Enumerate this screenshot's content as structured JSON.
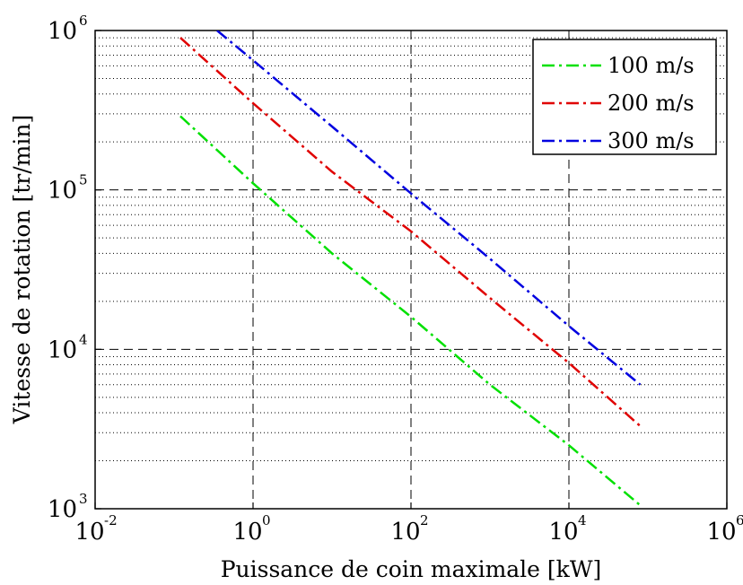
{
  "chart_data": {
    "type": "line",
    "title": "",
    "xlabel": "Puissance de coin maximale [kW]",
    "ylabel": "Vitesse de rotation [tr/min]",
    "xscale": "log",
    "yscale": "log",
    "xlim": [
      0.01,
      1000000
    ],
    "ylim": [
      1000,
      1000000
    ],
    "grid": true,
    "legend_position": "top-right",
    "x_ticks": [
      {
        "base": "10",
        "exp": "-2",
        "value": 0.01
      },
      {
        "base": "10",
        "exp": "0",
        "value": 1
      },
      {
        "base": "10",
        "exp": "2",
        "value": 100
      },
      {
        "base": "10",
        "exp": "4",
        "value": 10000
      },
      {
        "base": "10",
        "exp": "6",
        "value": 1000000
      }
    ],
    "y_ticks": [
      {
        "base": "10",
        "exp": "3",
        "value": 1000
      },
      {
        "base": "10",
        "exp": "4",
        "value": 10000
      },
      {
        "base": "10",
        "exp": "5",
        "value": 100000
      },
      {
        "base": "10",
        "exp": "6",
        "value": 1000000
      }
    ],
    "series": [
      {
        "name": "100 m/s",
        "color": "#00e000",
        "x": [
          0.12,
          1,
          10,
          100,
          1000,
          10000,
          80000
        ],
        "y": [
          290000,
          110000,
          40000,
          16000,
          6000,
          2500,
          1050
        ]
      },
      {
        "name": "200 m/s",
        "color": "#e00000",
        "x": [
          0.12,
          1,
          10,
          100,
          1000,
          10000,
          80000
        ],
        "y": [
          900000,
          350000,
          130000,
          55000,
          21000,
          8200,
          3300
        ]
      },
      {
        "name": "300 m/s",
        "color": "#0000e0",
        "x": [
          0.35,
          1,
          10,
          100,
          1000,
          10000,
          80000
        ],
        "y": [
          1000000,
          650000,
          250000,
          95000,
          37000,
          14000,
          6000
        ]
      }
    ]
  }
}
